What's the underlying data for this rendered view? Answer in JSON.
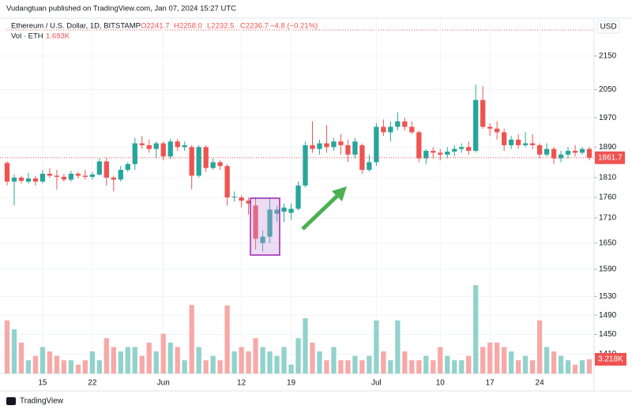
{
  "chart_data": {
    "type": "candlestick",
    "published": "Vudangtuan published on TradingView.com, Jan 07, 2024 15:27 UTC",
    "title": "Ethereum / U.S. Dollar, 1D, BITSTAMP",
    "ohlc_text": {
      "open": "O2241.7",
      "high": "H2258.0",
      "low": "L2232.5",
      "close": "C2236.7",
      "change": "−4.8 (−0.21%)"
    },
    "volume_title": "Vol · ETH",
    "volume_text": "1.693K",
    "currency": "USD",
    "brand": "TradingView",
    "categories": [
      null,
      null,
      null,
      null,
      null,
      "15",
      null,
      null,
      null,
      null,
      null,
      null,
      "22",
      null,
      null,
      null,
      null,
      null,
      null,
      null,
      null,
      null,
      "Jun",
      null,
      null,
      null,
      null,
      null,
      null,
      null,
      null,
      null,
      null,
      "12",
      null,
      null,
      null,
      null,
      null,
      null,
      "19",
      null,
      null,
      null,
      null,
      null,
      null,
      null,
      null,
      null,
      null,
      null,
      "Jul",
      null,
      null,
      null,
      null,
      null,
      null,
      null,
      null,
      "10",
      null,
      null,
      null,
      null,
      null,
      null,
      "17",
      null,
      null,
      null,
      null,
      null,
      null,
      "24",
      null,
      null,
      null,
      null,
      null,
      null,
      null
    ],
    "open": [
      1848,
      1800,
      1810,
      1800,
      1808,
      1800,
      1820,
      1815,
      1812,
      1805,
      1820,
      1815,
      1812,
      1818,
      1852,
      1810,
      1805,
      1830,
      1845,
      1900,
      1895,
      1885,
      1900,
      1865,
      1905,
      1890,
      1890,
      1815,
      1890,
      1835,
      1850,
      1840,
      1760,
      1760,
      1752,
      1740,
      1650,
      1665,
      1720,
      1725,
      1722,
      1732,
      1790,
      1895,
      1885,
      1900,
      1890,
      1905,
      1895,
      1870,
      1895,
      1830,
      1850,
      1945,
      1930,
      1945,
      1960,
      1945,
      1930,
      1860,
      1880,
      1875,
      1870,
      1878,
      1885,
      1890,
      1880,
      2020,
      1945,
      1940,
      1930,
      1895,
      1910,
      1895,
      1900,
      1895,
      1870,
      1885,
      1860,
      1870,
      1880,
      1875,
      1885
    ],
    "high": [
      1852,
      1818,
      1815,
      1822,
      1815,
      1830,
      1835,
      1830,
      1820,
      1828,
      1825,
      1830,
      1825,
      1860,
      1862,
      1815,
      1840,
      1850,
      1915,
      1920,
      1910,
      1905,
      1905,
      1912,
      1912,
      1905,
      1895,
      1895,
      1895,
      1860,
      1855,
      1845,
      1775,
      1765,
      1760,
      1760,
      1680,
      1760,
      1740,
      1745,
      1745,
      1800,
      1905,
      1960,
      1910,
      1950,
      1915,
      1925,
      1910,
      1915,
      1900,
      1870,
      1955,
      1965,
      1960,
      1985,
      1970,
      1960,
      1935,
      1885,
      1890,
      1885,
      1890,
      1895,
      1900,
      1905,
      2065,
      2060,
      1955,
      1960,
      1940,
      1920,
      1925,
      1930,
      1925,
      1900,
      1900,
      1890,
      1880,
      1890,
      1895,
      1890,
      1890
    ],
    "low": [
      1790,
      1740,
      1795,
      1795,
      1790,
      1795,
      1810,
      1780,
      1800,
      1800,
      1808,
      1805,
      1805,
      1815,
      1790,
      1775,
      1800,
      1825,
      1830,
      1885,
      1875,
      1860,
      1855,
      1858,
      1880,
      1880,
      1780,
      1810,
      1825,
      1830,
      1830,
      1740,
      1750,
      1735,
      1718,
      1635,
      1630,
      1650,
      1700,
      1700,
      1705,
      1728,
      1785,
      1875,
      1870,
      1875,
      1880,
      1870,
      1850,
      1860,
      1820,
      1825,
      1840,
      1920,
      1905,
      1935,
      1935,
      1925,
      1850,
      1845,
      1860,
      1855,
      1860,
      1865,
      1875,
      1870,
      1875,
      1940,
      1920,
      1910,
      1880,
      1885,
      1885,
      1890,
      1885,
      1860,
      1865,
      1845,
      1850,
      1860,
      1865,
      1870,
      1855
    ],
    "close": [
      1800,
      1810,
      1802,
      1808,
      1800,
      1820,
      1815,
      1812,
      1805,
      1820,
      1815,
      1812,
      1818,
      1852,
      1810,
      1805,
      1830,
      1845,
      1900,
      1895,
      1885,
      1900,
      1865,
      1905,
      1890,
      1895,
      1815,
      1890,
      1835,
      1850,
      1840,
      1760,
      1762,
      1752,
      1745,
      1660,
      1665,
      1730,
      1730,
      1735,
      1732,
      1790,
      1895,
      1885,
      1900,
      1890,
      1905,
      1895,
      1870,
      1905,
      1830,
      1850,
      1945,
      1930,
      1945,
      1960,
      1945,
      1930,
      1860,
      1880,
      1875,
      1870,
      1878,
      1885,
      1890,
      1880,
      2020,
      1945,
      1940,
      1930,
      1895,
      1910,
      1895,
      1900,
      1895,
      1870,
      1885,
      1860,
      1870,
      1880,
      1875,
      1885,
      1861.7
    ],
    "volume": {
      "values": [
        12,
        10,
        7,
        3,
        4,
        6,
        5,
        4,
        3,
        3,
        2,
        3,
        5,
        3,
        8,
        6,
        5,
        6,
        6,
        4,
        7,
        5,
        9,
        7,
        6,
        3,
        15.5,
        6,
        3,
        4,
        3,
        15.4,
        5,
        6,
        5,
        8,
        6,
        5,
        4,
        6,
        2,
        8,
        12.5,
        7,
        5,
        3,
        6,
        3,
        3,
        4,
        3,
        4,
        12,
        5,
        3,
        12,
        5,
        3,
        3,
        4,
        3,
        6,
        4,
        3,
        3,
        4,
        20,
        6,
        7,
        7,
        6,
        5,
        3,
        4,
        3,
        12,
        6,
        5,
        4,
        3,
        2,
        3,
        3.218
      ],
      "last_label": "3.218K",
      "ylim": [
        0,
        80
      ]
    },
    "ylim": [
      1372,
      2263
    ],
    "log_scale": true,
    "yticks": [
      2150,
      2050,
      1970,
      1890,
      1810,
      1760,
      1710,
      1650,
      1590,
      1530,
      1490,
      1450,
      1410
    ],
    "grid": true,
    "up_color": "#26a69a",
    "down_color": "#ef5350",
    "up_volume_color": "#92d2cc",
    "down_volume_color": "#f7a9a7"
  }
}
